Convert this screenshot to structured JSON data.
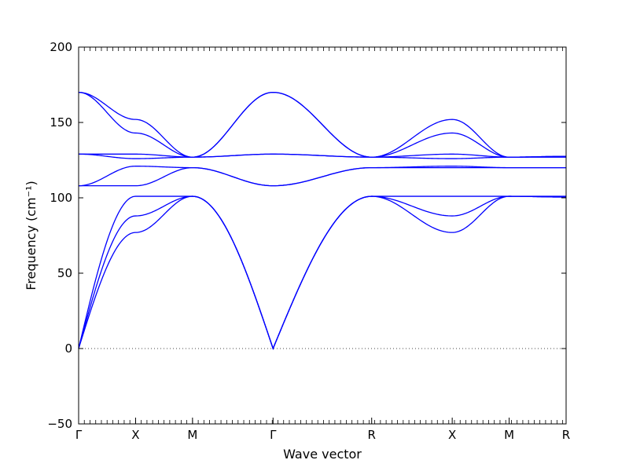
{
  "chart_data": {
    "type": "line",
    "title": "",
    "xlabel": "Wave vector",
    "ylabel": "Frequency (cm⁻¹)",
    "ylim": [
      -50,
      200
    ],
    "yticks": [
      -50,
      0,
      50,
      100,
      150,
      200
    ],
    "ytick_labels": [
      "−50",
      "0",
      "50",
      "100",
      "150",
      "200"
    ],
    "path_labels": [
      "Γ",
      "X",
      "M",
      "Γ",
      "R",
      "X",
      "M",
      "R"
    ],
    "path_positions": [
      0,
      0.5,
      1.0,
      1.7071,
      2.5731,
      3.2802,
      3.7802,
      4.2802
    ],
    "xlim": [
      0,
      4.2802
    ],
    "grid": false,
    "legend": "none",
    "zero_line": {
      "y": 0,
      "style": "dotted"
    },
    "series_color": "#0000ff",
    "series": [
      {
        "x": [
          0,
          0.5,
          1.0,
          1.7071,
          2.5731,
          3.2802,
          3.7802,
          4.2802
        ],
        "y": [
          0,
          77,
          101,
          0,
          101,
          77,
          101,
          100.5
        ]
      },
      {
        "x": [
          0,
          0.5,
          1.0,
          1.7071,
          2.5731,
          3.2802,
          3.7802,
          4.2802
        ],
        "y": [
          0,
          88,
          101,
          0,
          101,
          88,
          101,
          100.5
        ]
      },
      {
        "x": [
          0,
          0.5,
          1.0,
          1.7071,
          2.5731,
          3.2802,
          3.7802,
          4.2802
        ],
        "y": [
          0,
          101,
          101,
          0,
          101,
          101,
          101,
          101
        ]
      },
      {
        "x": [
          0,
          0.5,
          1.0,
          1.7071,
          2.5731,
          3.2802,
          3.7802,
          4.2802
        ],
        "y": [
          108,
          108,
          120,
          108,
          120,
          120,
          120,
          120
        ]
      },
      {
        "x": [
          0,
          0.5,
          1.0,
          1.7071,
          2.5731,
          3.2802,
          3.7802,
          4.2802
        ],
        "y": [
          108,
          121,
          120,
          108,
          120,
          121,
          120,
          120
        ]
      },
      {
        "x": [
          0,
          0.5,
          1.0,
          1.7071,
          2.5731,
          3.2802,
          3.7802,
          4.2802
        ],
        "y": [
          129,
          126,
          127,
          129,
          127,
          126,
          127,
          127
        ]
      },
      {
        "x": [
          0,
          0.5,
          1.0,
          1.7071,
          2.5731,
          3.2802,
          3.7802,
          4.2802
        ],
        "y": [
          129,
          129,
          127,
          129,
          127,
          129,
          127,
          127
        ]
      },
      {
        "x": [
          0,
          0.5,
          1.0,
          1.7071,
          2.5731,
          3.2802,
          3.7802,
          4.2802
        ],
        "y": [
          170,
          143,
          127,
          170,
          127,
          143,
          127,
          127.5
        ]
      },
      {
        "x": [
          0,
          0.5,
          1.0,
          1.7071,
          2.5731,
          3.2802,
          3.7802,
          4.2802
        ],
        "y": [
          170,
          152,
          127,
          170,
          127,
          152,
          127,
          127.5
        ]
      }
    ]
  }
}
